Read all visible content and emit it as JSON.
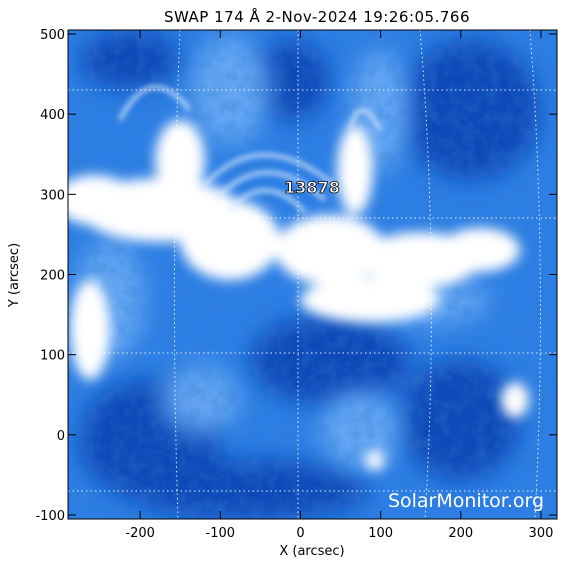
{
  "title": "SWAP 174 Å  2-Nov-2024 19:26:05.766",
  "x_axis": {
    "label": "X (arcsec)",
    "ticks": [
      "-200",
      "-100",
      "0",
      "100",
      "200",
      "300"
    ],
    "range": [
      -290,
      320
    ]
  },
  "y_axis": {
    "label": "Y (arcsec)",
    "ticks": [
      "500",
      "400",
      "300",
      "200",
      "100",
      "0",
      "-100"
    ],
    "range": [
      -105,
      505
    ]
  },
  "region": {
    "number": "13878",
    "x": 10,
    "y": 308
  },
  "watermark": "SolarMonitor.org",
  "colors": {
    "background_dark": "#0a4fc0",
    "mid": "#3f8ff0",
    "bright": "#ffffff",
    "grid": "#ffffff"
  }
}
